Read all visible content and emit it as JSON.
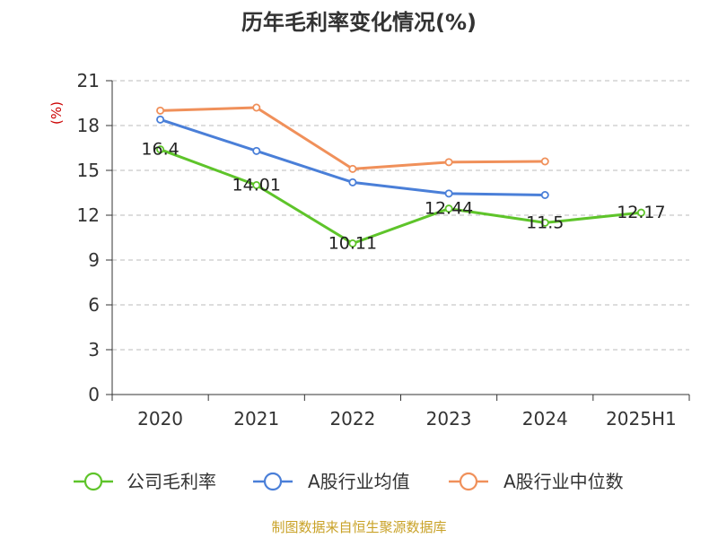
{
  "chart_data": {
    "type": "line",
    "title": "历年毛利率变化情况(%)",
    "ylabel": "(%)",
    "xlabel": "",
    "categories": [
      "2020",
      "2021",
      "2022",
      "2023",
      "2024",
      "2025H1"
    ],
    "ylim": [
      0,
      21
    ],
    "yticks": [
      0,
      3,
      6,
      9,
      12,
      15,
      18,
      21
    ],
    "grid": true,
    "legend_position": "bottom",
    "series": [
      {
        "name": "公司毛利率",
        "color": "#5ec42a",
        "values": [
          16.4,
          14.01,
          10.11,
          12.44,
          11.5,
          12.17
        ],
        "labels": [
          "16.4",
          "14.01",
          "10.11",
          "12.44",
          "11.5",
          "12.17"
        ]
      },
      {
        "name": "A股行业均值",
        "color": "#4a7fd8",
        "values": [
          18.4,
          16.3,
          14.2,
          13.45,
          13.35,
          null
        ]
      },
      {
        "name": "A股行业中位数",
        "color": "#f0905a",
        "values": [
          19.0,
          19.2,
          15.1,
          15.55,
          15.6,
          null
        ]
      }
    ],
    "source": "制图数据来自恒生聚源数据库"
  }
}
